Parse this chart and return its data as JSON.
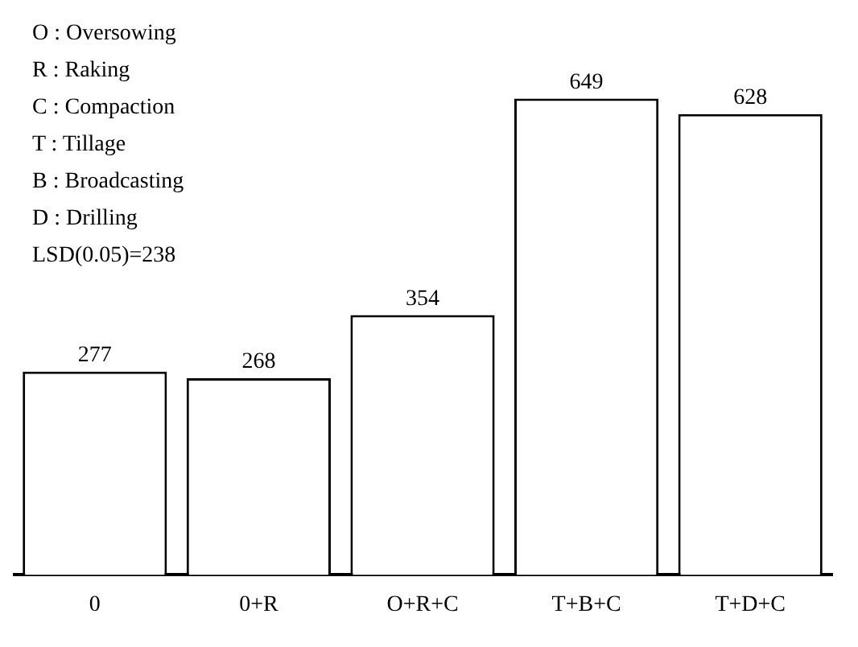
{
  "chart_data": {
    "type": "bar",
    "categories": [
      "0",
      "0+R",
      "O+R+C",
      "T+B+C",
      "T+D+C"
    ],
    "values": [
      277,
      268,
      354,
      649,
      628
    ],
    "color": "#ffffff",
    "data_labels": true,
    "grid": false,
    "legend": false,
    "annotations": [
      "O : Oversowing",
      "R : Raking",
      "C : Compaction",
      "T : Tillage",
      "B : Broadcasting",
      "D : Drilling",
      "LSD(0.05)=238"
    ]
  }
}
